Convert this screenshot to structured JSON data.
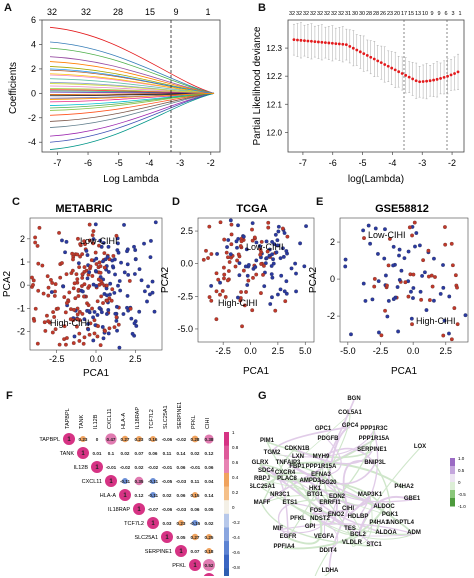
{
  "panels": {
    "A": {
      "letter": "A",
      "ylabel": "Coefficients",
      "xlabel": "Log Lambda",
      "top_ticks": [
        "32",
        "32",
        "28",
        "15",
        "9",
        "1"
      ],
      "x_ticks": [
        "-7",
        "-6",
        "-5",
        "-4",
        "-3",
        "-2"
      ],
      "y_ticks": [
        "6",
        "4",
        "2",
        "0",
        "-2",
        "-4"
      ]
    },
    "B": {
      "letter": "B",
      "ylabel": "Partial Likelihood deviance",
      "xlabel": "log(Lambda)",
      "top_ticks": [
        "32",
        "32",
        "32",
        "32",
        "32",
        "32",
        "32",
        "32",
        "31",
        "30",
        "30",
        "28",
        "28",
        "26",
        "23",
        "20",
        "17",
        "15",
        "13",
        "10",
        "9",
        "9",
        "6",
        "3",
        "1"
      ],
      "x_ticks": [
        "-7",
        "-6",
        "-5",
        "-4",
        "-3",
        "-2"
      ],
      "y_ticks": [
        "12.0",
        "12.1",
        "12.2",
        "12.3"
      ]
    },
    "C": {
      "letter": "C",
      "title": "METABRIC",
      "xlabel": "PCA1",
      "ylabel": "PCA2",
      "x_ticks": [
        "-2.5",
        "0.0",
        "2.5"
      ],
      "y_ticks": [
        "2",
        "1",
        "0",
        "-1",
        "-2"
      ],
      "low_label": "Low-CIHI",
      "high_label": "High-CIHI"
    },
    "D": {
      "letter": "D",
      "title": "TCGA",
      "xlabel": "PCA1",
      "ylabel": "PCA2",
      "x_ticks": [
        "-2.5",
        "0.0",
        "2.5",
        "5.0"
      ],
      "y_ticks": [
        "2.5",
        "0.0",
        "-2.5",
        "-5.0"
      ],
      "low_label": "Low-CIHI",
      "high_label": "High-CIHI"
    },
    "E": {
      "letter": "E",
      "title": "GSE58812",
      "xlabel": "PCA1",
      "ylabel": "PCA2",
      "x_ticks": [
        "-5.0",
        "-2.5",
        "0.0",
        "2.5"
      ],
      "y_ticks": [
        "2",
        "0",
        "-2"
      ],
      "low_label": "Low-CIHI",
      "high_label": "High-CIHI"
    },
    "F": {
      "letter": "F",
      "genes": [
        "TAPBPL",
        "TANK",
        "IL12B",
        "CXCL11",
        "HLA-A",
        "IL18RAP",
        "TCF7L2",
        "SLC25A1",
        "SERPINE1",
        "PFKL",
        "CIHI"
      ],
      "rows": [
        [
          "1",
          "0.23",
          "0",
          "0.47",
          "0.27",
          "0.23",
          "0.16",
          "-0.06",
          "-0.02",
          "0.28",
          "0.38"
        ],
        [
          "1",
          "0.01",
          "0.1",
          "0.02",
          "0.07",
          "0.06",
          "0.11",
          "0.14",
          "0.02",
          "0.12"
        ],
        [
          "1",
          "-0.01",
          "-0.02",
          "0.02",
          "-0.02",
          "-0.01",
          "0.06",
          "-0.01",
          "0.06"
        ],
        [
          "1",
          "-0.11",
          "0.35",
          "-0.11",
          "-0.05",
          "-0.03",
          "0.11",
          "0.04"
        ],
        [
          "1",
          "0.12",
          "-0.11",
          "0.02",
          "0.06",
          "0.15",
          "0.14"
        ],
        [
          "1",
          "-0.07",
          "-0.06",
          "-0.03",
          "0.06",
          "0.05"
        ],
        [
          "1",
          "0.03",
          "0.23",
          "-0.15",
          "0.02"
        ],
        [
          "1",
          "0.05",
          "0.27",
          "0.25"
        ],
        [
          "1",
          "0.07",
          "0.18"
        ],
        [
          "1",
          "0.52"
        ],
        [
          "1"
        ]
      ],
      "scale_ticks": [
        "1",
        "0.8",
        "0.6",
        "0.4",
        "0.2",
        "0",
        "-0.2",
        "-0.4",
        "-0.6",
        "-0.8",
        "-1"
      ],
      "colors": {
        "pos": "#d63384",
        "neg": "#2f5fb3",
        "mid": "#f0a35e"
      }
    },
    "G": {
      "letter": "G",
      "genes": [
        {
          "t": "BGN"
        },
        {
          "t": "COL5A1"
        },
        {
          "t": "GPC1"
        },
        {
          "t": "GPC4"
        },
        {
          "t": "PPP1R3C"
        },
        {
          "t": "PDGFB"
        },
        {
          "t": "PPP1R15A"
        },
        {
          "t": "PIM1"
        },
        {
          "t": "CDKN1B"
        },
        {
          "t": "SERPINE1"
        },
        {
          "t": "LOX"
        },
        {
          "t": "TGM2"
        },
        {
          "t": "LXN"
        },
        {
          "t": "MYH9"
        },
        {
          "t": "GLRX"
        },
        {
          "t": "TNFAIP3"
        },
        {
          "t": "FBP1"
        },
        {
          "t": "PPP1R15A"
        },
        {
          "t": "BNIP3L"
        },
        {
          "t": "SDC4"
        },
        {
          "t": "CXCR4"
        },
        {
          "t": "EFNA3"
        },
        {
          "t": "RBPJ"
        },
        {
          "t": "PLAC8"
        },
        {
          "t": "AMPD3"
        },
        {
          "t": "ISG20"
        },
        {
          "t": "SLC25A1"
        },
        {
          "t": "HK1"
        },
        {
          "t": "P4HA2"
        },
        {
          "t": "NR3C1"
        },
        {
          "t": "BTG1"
        },
        {
          "t": "EDN2"
        },
        {
          "t": "MAFF"
        },
        {
          "t": "MAP3K1"
        },
        {
          "t": "GBE1"
        },
        {
          "t": "ETS1"
        },
        {
          "t": "ERRFI1"
        },
        {
          "t": "ALDOC"
        },
        {
          "t": "FOS"
        },
        {
          "t": "CIHI"
        },
        {
          "t": "ENO2"
        },
        {
          "t": "PFKL"
        },
        {
          "t": "NDST2"
        },
        {
          "t": "HDLBP"
        },
        {
          "t": "ANGPTL4"
        },
        {
          "t": "PGK1"
        },
        {
          "t": "MIF"
        },
        {
          "t": "GPI"
        },
        {
          "t": "TES"
        },
        {
          "t": "P4HA1"
        },
        {
          "t": "BCL2"
        },
        {
          "t": "EGFR"
        },
        {
          "t": "VEGFA"
        },
        {
          "t": "VLDLR"
        },
        {
          "t": "ALDOA"
        },
        {
          "t": "ADM"
        },
        {
          "t": "PPFIA4"
        },
        {
          "t": "DDIT4"
        },
        {
          "t": "STC1"
        },
        {
          "t": "LDHA"
        }
      ],
      "scale_ticks": [
        "1.0",
        "0.5",
        "0",
        "-0.5",
        "-1.0"
      ]
    }
  },
  "colors": {
    "red_point": "#c0392b",
    "blue_point": "#2b3aa0",
    "cv_red": "#e31a1c"
  }
}
